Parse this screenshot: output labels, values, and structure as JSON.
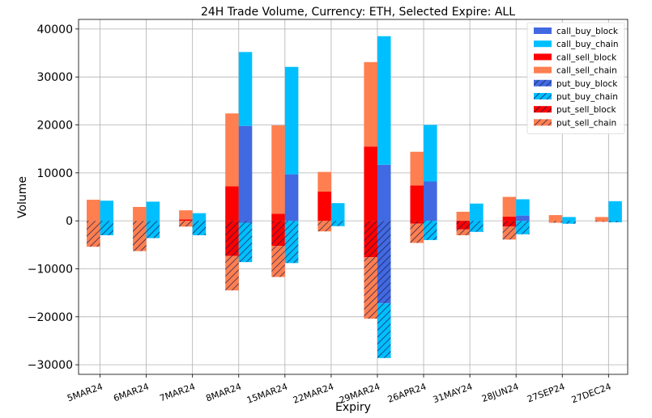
{
  "chart_data": {
    "type": "bar",
    "title": "24H Trade Volume, Currency: ETH, Selected Expire: ALL",
    "xlabel": "Expiry",
    "ylabel": "Volume",
    "ylim": [
      -32000,
      42000
    ],
    "yticks": [
      -30000,
      -20000,
      -10000,
      0,
      10000,
      20000,
      30000,
      40000
    ],
    "ytick_labels": [
      "−30000",
      "−20000",
      "−10000",
      "0",
      "10000",
      "20000",
      "30000",
      "40000"
    ],
    "grid": true,
    "legend_position": "top-right",
    "categories": [
      "5MAR24",
      "6MAR24",
      "7MAR24",
      "8MAR24",
      "15MAR24",
      "22MAR24",
      "29MAR24",
      "26APR24",
      "31MAY24",
      "28JUN24",
      "27SEP24",
      "27DEC24"
    ],
    "stack_groups": [
      {
        "name": "call_sell",
        "offset": "left",
        "series": [
          {
            "name": "call_sell_block",
            "color": "#ff0000",
            "hatch": false,
            "values": [
              0,
              0,
              300,
              7200,
              1500,
              6100,
              15500,
              7400,
              0,
              900,
              0,
              0
            ]
          },
          {
            "name": "call_sell_chain",
            "color": "#ff7f50",
            "hatch": false,
            "values": [
              4400,
              2900,
              1900,
              15200,
              18400,
              4100,
              17600,
              7000,
              1900,
              4100,
              1200,
              800
            ]
          }
        ]
      },
      {
        "name": "put_sell",
        "offset": "left",
        "series": [
          {
            "name": "put_sell_block",
            "color": "#ff0000",
            "hatch": true,
            "values": [
              0,
              0,
              0,
              -7300,
              -5200,
              0,
              -7600,
              -600,
              -1800,
              -1200,
              0,
              0
            ]
          },
          {
            "name": "put_sell_chain",
            "color": "#ff7f50",
            "hatch": true,
            "values": [
              -5400,
              -6300,
              -1200,
              -7200,
              -6500,
              -2200,
              -12800,
              -4000,
              -1200,
              -2700,
              -400,
              -200
            ]
          }
        ]
      },
      {
        "name": "call_buy",
        "offset": "right",
        "series": [
          {
            "name": "call_buy_block",
            "color": "#4169e1",
            "hatch": false,
            "values": [
              0,
              0,
              0,
              19800,
              9700,
              0,
              11700,
              8200,
              0,
              1100,
              0,
              0
            ]
          },
          {
            "name": "call_buy_chain",
            "color": "#00bfff",
            "hatch": false,
            "values": [
              4200,
              4000,
              1600,
              15400,
              22400,
              3700,
              26800,
              11800,
              3600,
              3400,
              800,
              4100
            ]
          }
        ]
      },
      {
        "name": "put_buy",
        "offset": "right",
        "series": [
          {
            "name": "put_buy_block",
            "color": "#4169e1",
            "hatch": true,
            "values": [
              0,
              0,
              0,
              -400,
              0,
              0,
              -17200,
              0,
              0,
              0,
              0,
              0
            ]
          },
          {
            "name": "put_buy_chain",
            "color": "#00bfff",
            "hatch": true,
            "values": [
              -3000,
              -3600,
              -3000,
              -8200,
              -8800,
              -1100,
              -11400,
              -4000,
              -2300,
              -2800,
              -600,
              -300
            ]
          }
        ]
      }
    ],
    "legend": [
      {
        "name": "call_buy_block",
        "color": "#4169e1",
        "hatch": false
      },
      {
        "name": "call_buy_chain",
        "color": "#00bfff",
        "hatch": false
      },
      {
        "name": "call_sell_block",
        "color": "#ff0000",
        "hatch": false
      },
      {
        "name": "call_sell_chain",
        "color": "#ff7f50",
        "hatch": false
      },
      {
        "name": "put_buy_block",
        "color": "#4169e1",
        "hatch": true
      },
      {
        "name": "put_buy_chain",
        "color": "#00bfff",
        "hatch": true
      },
      {
        "name": "put_sell_block",
        "color": "#ff0000",
        "hatch": true
      },
      {
        "name": "put_sell_chain",
        "color": "#ff7f50",
        "hatch": true
      }
    ]
  }
}
